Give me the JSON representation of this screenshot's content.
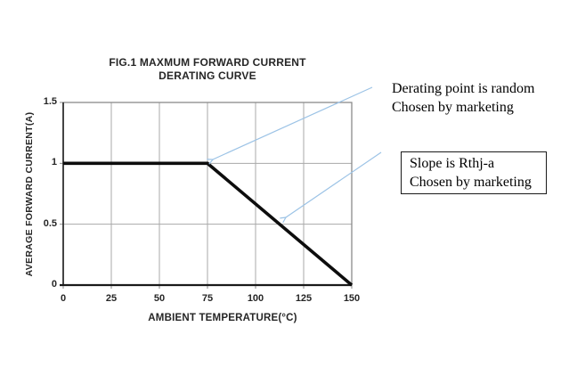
{
  "figure": {
    "title_line1": "FIG.1 MAXMUM FORWARD CURRENT",
    "title_line2": "DERATING CURVE"
  },
  "chart_data": {
    "type": "line",
    "title": "FIG.1 MAXMUM FORWARD CURRENT DERATING CURVE",
    "xlabel": "AMBIENT TEMPERATURE(°C)",
    "ylabel": "AVERAGE FORWARD CURRENT(A)",
    "xlim": [
      0,
      150
    ],
    "ylim": [
      0,
      1.5
    ],
    "x_ticks": [
      0,
      25,
      50,
      75,
      100,
      125,
      150
    ],
    "y_ticks": [
      0,
      0.5,
      1,
      1.5
    ],
    "y_tick_labels": [
      "0",
      "0.5",
      "1",
      "1.5"
    ],
    "grid": true,
    "legend": "none",
    "series": [
      {
        "name": "maximum forward current derating curve",
        "x": [
          0,
          75,
          150
        ],
        "y": [
          1.0,
          1.0,
          0.0
        ]
      }
    ],
    "derating_point": {
      "x": 75,
      "y": 1.0
    },
    "line_color": "#0d0d0d",
    "grid_color": "#a8a8a8",
    "border_color": "#8a8a8a",
    "axis_color": "#333333"
  },
  "annotations": {
    "arrow_color": "#9cc3e6",
    "derating_note": {
      "line1": "Derating point is random",
      "line2": "Chosen by marketing"
    },
    "slope_note": {
      "line1": "Slope is Rthj-a",
      "line2": "Chosen by marketing"
    }
  }
}
